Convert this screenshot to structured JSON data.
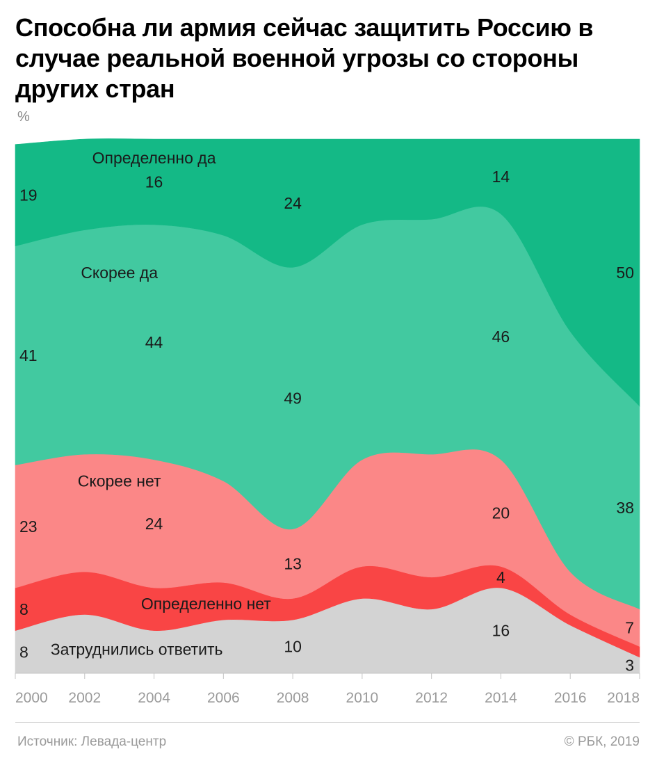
{
  "title": "Способна ли армия сейчас защитить Россию в случае реальной военной угрозы со стороны других стран",
  "unit": "%",
  "source": "Источник: Левада-центр",
  "copyright": "© РБК, 2019",
  "colors": {
    "definitely_yes": "#14b986",
    "rather_yes": "#42c9a0",
    "rather_no": "#fb8787",
    "definitely_no": "#f94545",
    "hard_to_say": "#d3d3d3"
  },
  "chart_data": {
    "type": "area",
    "stacked": true,
    "normalized_percent": true,
    "x": [
      2000,
      2002,
      2004,
      2006,
      2008,
      2010,
      2012,
      2014,
      2016,
      2018
    ],
    "xlim": [
      2000,
      2018
    ],
    "ylim": [
      0,
      100
    ],
    "grid": false,
    "series": [
      {
        "name": "Затруднились ответить",
        "color": "#d3d3d3",
        "values": [
          8,
          11,
          8,
          10,
          10,
          14,
          12,
          16,
          9,
          3
        ],
        "labels": [
          {
            "x": 2000,
            "value": 8
          },
          {
            "x": 2008,
            "value": 10
          },
          {
            "x": 2014,
            "value": 16
          },
          {
            "x": 2018,
            "value": 3
          }
        ]
      },
      {
        "name": "Определенно нет",
        "color": "#f94545",
        "values": [
          8,
          8,
          8,
          7,
          4,
          6,
          6,
          4,
          2,
          2
        ],
        "labels": [
          {
            "x": 2000,
            "value": 8
          },
          {
            "x": 2014,
            "value": 4
          }
        ]
      },
      {
        "name": "Скорее нет",
        "color": "#fb8787",
        "values": [
          23,
          22,
          24,
          19,
          13,
          20,
          23,
          20,
          8,
          7
        ],
        "labels": [
          {
            "x": 2000,
            "value": 23
          },
          {
            "x": 2004,
            "value": 24
          },
          {
            "x": 2008,
            "value": 13
          },
          {
            "x": 2014,
            "value": 20
          },
          {
            "x": 2018,
            "value": 7
          }
        ]
      },
      {
        "name": "Скорее да",
        "color": "#42c9a0",
        "values": [
          41,
          42,
          44,
          46,
          49,
          44,
          44,
          46,
          45,
          38
        ],
        "labels": [
          {
            "x": 2000,
            "value": 41
          },
          {
            "x": 2004,
            "value": 44
          },
          {
            "x": 2008,
            "value": 49
          },
          {
            "x": 2014,
            "value": 46
          },
          {
            "x": 2018,
            "value": 38
          }
        ]
      },
      {
        "name": "Определенно да",
        "color": "#14b986",
        "values": [
          19,
          17,
          16,
          18,
          24,
          16,
          15,
          14,
          36,
          50
        ],
        "labels": [
          {
            "x": 2000,
            "value": 19
          },
          {
            "x": 2004,
            "value": 16
          },
          {
            "x": 2008,
            "value": 24
          },
          {
            "x": 2014,
            "value": 14
          },
          {
            "x": 2018,
            "value": 50
          }
        ]
      }
    ],
    "series_label_anchors": [
      {
        "name": "Определенно да",
        "x": 2004.0,
        "y": 96.5
      },
      {
        "name": "Скорее да",
        "x": 2003.0,
        "y": 75
      },
      {
        "name": "Скорее нет",
        "x": 2003.0,
        "y": 36
      },
      {
        "name": "Определенно нет",
        "x": 2005.5,
        "y": 13
      },
      {
        "name": "Затруднились ответить",
        "x": 2003.5,
        "y": 4.5
      }
    ],
    "tick_labels": [
      "2000",
      "2002",
      "2004",
      "2006",
      "2008",
      "2010",
      "2012",
      "2014",
      "2016",
      "2018"
    ]
  }
}
